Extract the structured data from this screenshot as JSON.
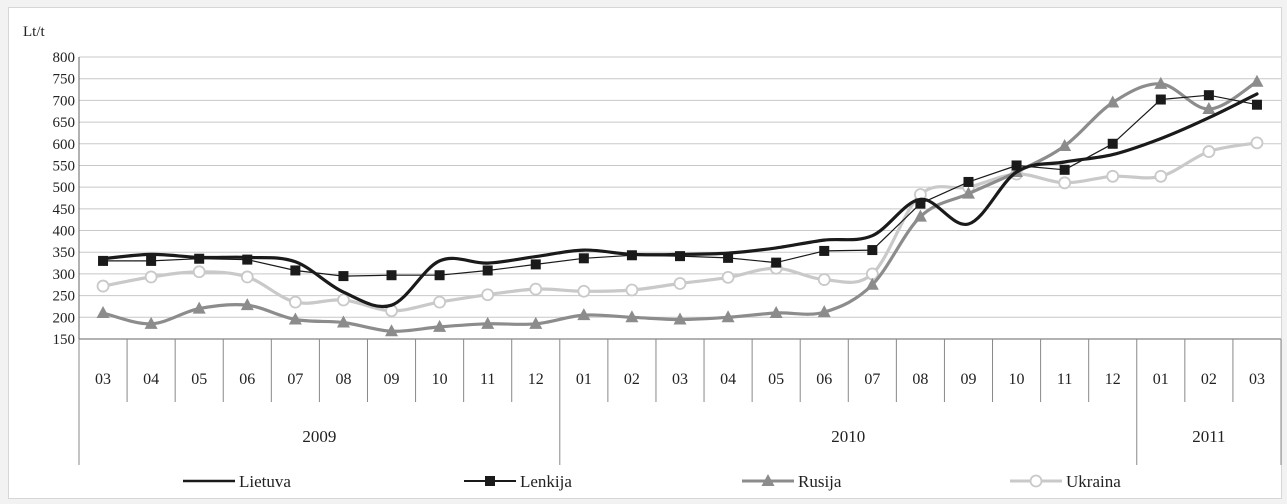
{
  "chart_data": {
    "type": "line",
    "ylabel": "Lt/t",
    "ylim": [
      150,
      800
    ],
    "yticks": [
      150,
      200,
      250,
      300,
      350,
      400,
      450,
      500,
      550,
      600,
      650,
      700,
      750,
      800
    ],
    "grid": true,
    "categories": [
      "03",
      "04",
      "05",
      "06",
      "07",
      "08",
      "09",
      "10",
      "11",
      "12",
      "01",
      "02",
      "03",
      "04",
      "05",
      "06",
      "07",
      "08",
      "09",
      "10",
      "11",
      "12",
      "01",
      "02",
      "03"
    ],
    "years": [
      {
        "label": "2009",
        "count": 10
      },
      {
        "label": "2010",
        "count": 12
      },
      {
        "label": "2011",
        "count": 3
      }
    ],
    "legend_position": "bottom",
    "series": [
      {
        "name": "Lietuva",
        "color": "#1a1a1a",
        "marker": "none",
        "width": 3.2,
        "smooth": true,
        "values": [
          335,
          345,
          338,
          338,
          328,
          258,
          228,
          330,
          325,
          340,
          355,
          345,
          345,
          348,
          360,
          378,
          388,
          472,
          415,
          535,
          558,
          575,
          612,
          660,
          715
        ]
      },
      {
        "name": "Lenkija",
        "color": "#1a1a1a",
        "marker": "square",
        "width": 1.2,
        "smooth": false,
        "values": [
          330,
          330,
          335,
          333,
          308,
          295,
          297,
          297,
          308,
          322,
          336,
          343,
          341,
          337,
          326,
          353,
          355,
          462,
          512,
          550,
          540,
          600,
          702,
          712,
          690
        ]
      },
      {
        "name": "Rusija",
        "color": "#8c8c8c",
        "marker": "triangle",
        "width": 3.2,
        "smooth": true,
        "values": [
          210,
          185,
          220,
          228,
          195,
          188,
          168,
          178,
          185,
          185,
          205,
          200,
          195,
          200,
          210,
          212,
          275,
          432,
          485,
          535,
          595,
          695,
          738,
          680,
          743
        ]
      },
      {
        "name": "Ukraina",
        "color": "#c9c9c9",
        "marker": "circle",
        "width": 3.2,
        "smooth": true,
        "values": [
          272,
          293,
          305,
          293,
          235,
          240,
          215,
          235,
          252,
          265,
          260,
          263,
          278,
          292,
          313,
          287,
          300,
          483,
          500,
          530,
          510,
          525,
          525,
          582,
          602
        ]
      }
    ]
  }
}
